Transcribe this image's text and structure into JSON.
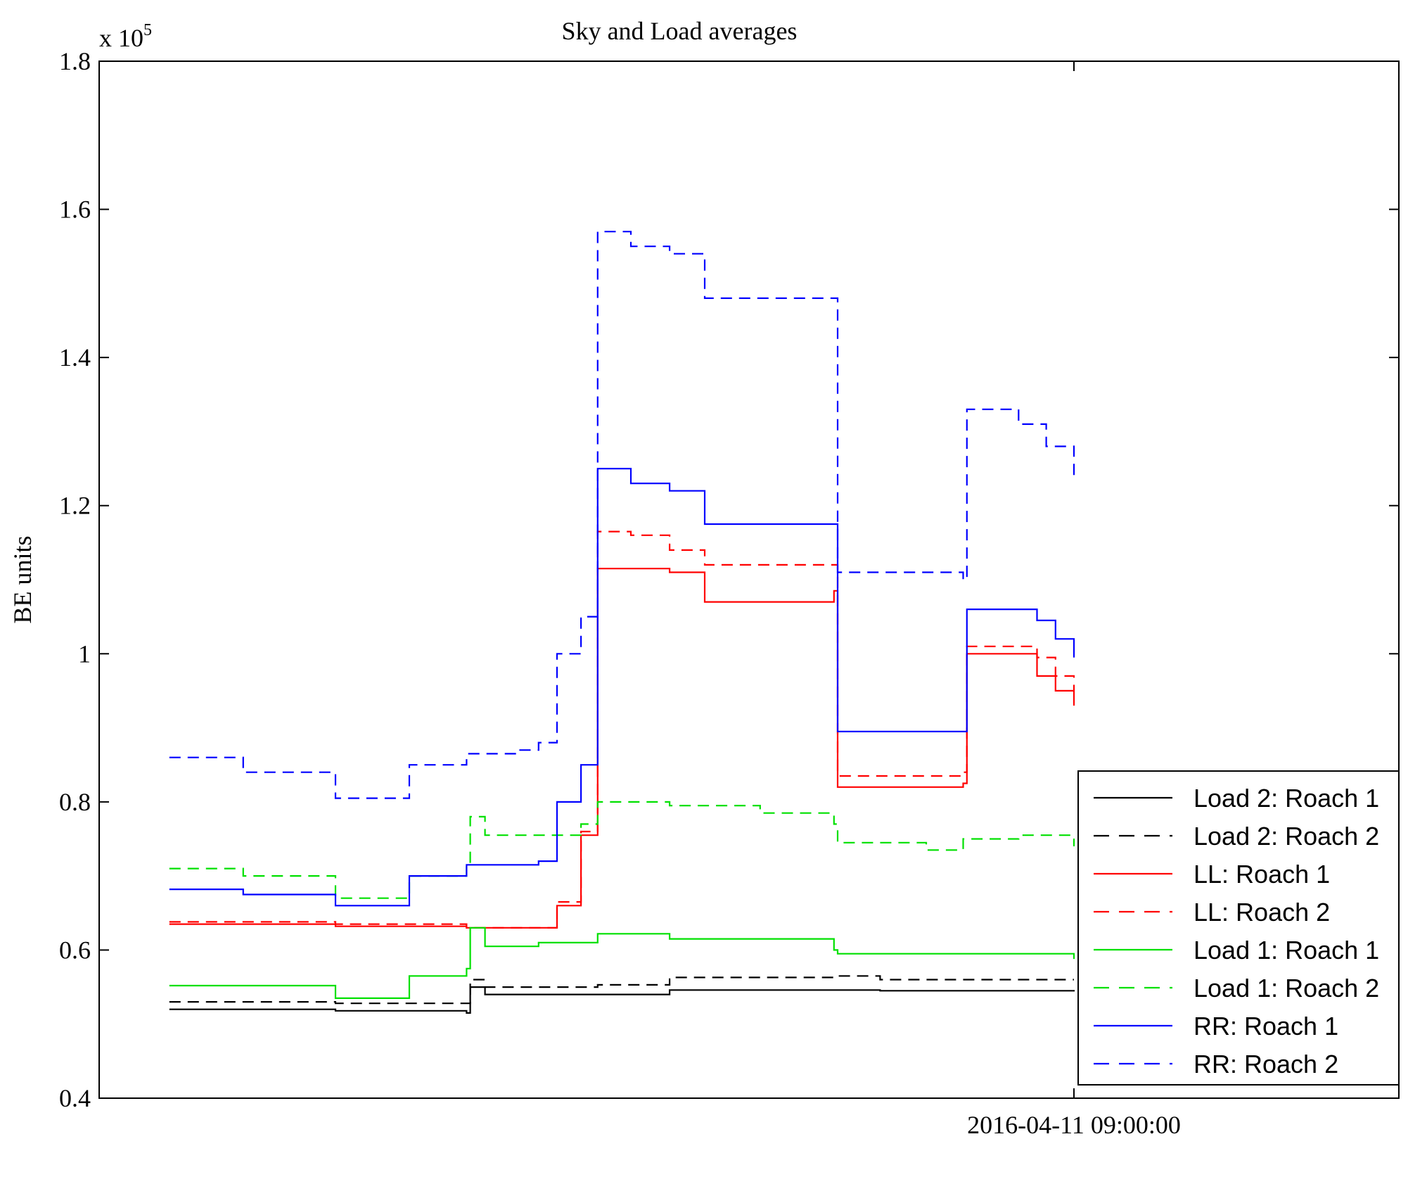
{
  "chart_data": {
    "type": "line",
    "title": "Sky and Load averages",
    "xlabel": "",
    "ylabel": "BE units",
    "y_multiplier": "x 10",
    "y_multiplier_exponent": "5",
    "ylim": [
      40000,
      180000
    ],
    "yticks": [
      {
        "value": 40000,
        "label": "0.4"
      },
      {
        "value": 60000,
        "label": "0.6"
      },
      {
        "value": 80000,
        "label": "0.8"
      },
      {
        "value": 100000,
        "label": "1"
      },
      {
        "value": 120000,
        "label": "1.2"
      },
      {
        "value": 140000,
        "label": "1.4"
      },
      {
        "value": 160000,
        "label": "1.6"
      },
      {
        "value": 180000,
        "label": "1.8"
      }
    ],
    "xlim": [
      "2016-04-11 00:12",
      "2016-04-11 11:56"
    ],
    "xticks": [
      {
        "value": "2016-04-11 09:00",
        "label": "2016-04-11 09:00:00"
      }
    ],
    "grid": false,
    "legend_position": "bottom-right",
    "series": [
      {
        "name": "Load 2: Roach 1",
        "color": "#000000",
        "dash": "solid",
        "x": [
          "2016-04-11 00:50",
          "2016-04-11 02:20",
          "2016-04-11 03:31",
          "2016-04-11 03:33",
          "2016-04-11 03:41",
          "2016-04-11 04:42",
          "2016-04-11 05:21",
          "2016-04-11 06:50",
          "2016-04-11 07:15",
          "2016-04-11 09:00"
        ],
        "y": [
          52000,
          51800,
          51500,
          55000,
          54000,
          54000,
          54600,
          54600,
          54500,
          54600
        ]
      },
      {
        "name": "Load 2: Roach 2",
        "color": "#000000",
        "dash": "dashed",
        "x": [
          "2016-04-11 00:50",
          "2016-04-11 02:20",
          "2016-04-11 03:31",
          "2016-04-11 03:33",
          "2016-04-11 03:41",
          "2016-04-11 04:42",
          "2016-04-11 05:21",
          "2016-04-11 06:50",
          "2016-04-11 07:15",
          "2016-04-11 09:00"
        ],
        "y": [
          53000,
          52800,
          52800,
          56000,
          55000,
          55300,
          56300,
          56500,
          56000,
          56000
        ]
      },
      {
        "name": "LL: Roach 1",
        "color": "#ff0000",
        "dash": "solid",
        "x": [
          "2016-04-11 00:50",
          "2016-04-11 02:20",
          "2016-04-11 03:31",
          "2016-04-11 04:10",
          "2016-04-11 04:20",
          "2016-04-11 04:33",
          "2016-04-11 04:42",
          "2016-04-11 05:00",
          "2016-04-11 05:21",
          "2016-04-11 05:40",
          "2016-04-11 06:50",
          "2016-04-11 06:52",
          "2016-04-11 08:00",
          "2016-04-11 08:02",
          "2016-04-11 08:40",
          "2016-04-11 08:50",
          "2016-04-11 09:00"
        ],
        "y": [
          63500,
          63200,
          63000,
          63000,
          66000,
          75500,
          111500,
          111500,
          111000,
          107000,
          108500,
          82000,
          82500,
          100000,
          97000,
          95000,
          93000
        ]
      },
      {
        "name": "LL: Roach 2",
        "color": "#ff0000",
        "dash": "dashed",
        "x": [
          "2016-04-11 00:50",
          "2016-04-11 02:20",
          "2016-04-11 03:31",
          "2016-04-11 04:10",
          "2016-04-11 04:20",
          "2016-04-11 04:33",
          "2016-04-11 04:42",
          "2016-04-11 05:00",
          "2016-04-11 05:21",
          "2016-04-11 05:40",
          "2016-04-11 06:50",
          "2016-04-11 06:52",
          "2016-04-11 08:00",
          "2016-04-11 08:02",
          "2016-04-11 08:40",
          "2016-04-11 08:50",
          "2016-04-11 09:00"
        ],
        "y": [
          63800,
          63500,
          63000,
          63000,
          66500,
          76000,
          116500,
          116000,
          114000,
          112000,
          112000,
          83500,
          84000,
          101000,
          99500,
          97000,
          95000
        ]
      },
      {
        "name": "Load 1: Roach 1",
        "color": "#00e000",
        "dash": "solid",
        "x": [
          "2016-04-11 00:50",
          "2016-04-11 02:20",
          "2016-04-11 03:00",
          "2016-04-11 03:31",
          "2016-04-11 03:33",
          "2016-04-11 03:41",
          "2016-04-11 04:10",
          "2016-04-11 04:42",
          "2016-04-11 05:21",
          "2016-04-11 06:50",
          "2016-04-11 06:52",
          "2016-04-11 08:00",
          "2016-04-11 09:00"
        ],
        "y": [
          55200,
          53500,
          56500,
          57500,
          63000,
          60500,
          61000,
          62200,
          61500,
          60000,
          59500,
          59500,
          58800
        ]
      },
      {
        "name": "Load 1: Roach 2",
        "color": "#00e000",
        "dash": "dashed",
        "x": [
          "2016-04-11 00:50",
          "2016-04-11 01:30",
          "2016-04-11 02:20",
          "2016-04-11 03:00",
          "2016-04-11 03:31",
          "2016-04-11 03:33",
          "2016-04-11 03:41",
          "2016-04-11 04:10",
          "2016-04-11 04:33",
          "2016-04-11 04:42",
          "2016-04-11 05:21",
          "2016-04-11 06:10",
          "2016-04-11 06:50",
          "2016-04-11 06:52",
          "2016-04-11 07:40",
          "2016-04-11 08:00",
          "2016-04-11 08:30",
          "2016-04-11 09:00"
        ],
        "y": [
          71000,
          70000,
          67000,
          70000,
          71500,
          78000,
          75500,
          75500,
          77000,
          80000,
          79500,
          78500,
          77000,
          74500,
          73500,
          75000,
          75500,
          74000
        ]
      },
      {
        "name": "RR: Roach 1",
        "color": "#0000ff",
        "dash": "solid",
        "x": [
          "2016-04-11 00:50",
          "2016-04-11 01:30",
          "2016-04-11 02:20",
          "2016-04-11 03:00",
          "2016-04-11 03:31",
          "2016-04-11 04:10",
          "2016-04-11 04:20",
          "2016-04-11 04:33",
          "2016-04-11 04:42",
          "2016-04-11 05:00",
          "2016-04-11 05:21",
          "2016-04-11 05:40",
          "2016-04-11 06:50",
          "2016-04-11 06:52",
          "2016-04-11 08:00",
          "2016-04-11 08:02",
          "2016-04-11 08:40",
          "2016-04-11 08:50",
          "2016-04-11 09:00"
        ],
        "y": [
          68200,
          67500,
          66000,
          70000,
          71500,
          72000,
          80000,
          85000,
          125000,
          123000,
          122000,
          117500,
          117500,
          89500,
          89500,
          106000,
          104500,
          102000,
          99500
        ]
      },
      {
        "name": "RR: Roach 2",
        "color": "#0000ff",
        "dash": "dashed",
        "x": [
          "2016-04-11 00:50",
          "2016-04-11 01:30",
          "2016-04-11 02:20",
          "2016-04-11 03:00",
          "2016-04-11 03:31",
          "2016-04-11 04:00",
          "2016-04-11 04:10",
          "2016-04-11 04:20",
          "2016-04-11 04:33",
          "2016-04-11 04:42",
          "2016-04-11 05:00",
          "2016-04-11 05:21",
          "2016-04-11 05:40",
          "2016-04-11 06:50",
          "2016-04-11 06:52",
          "2016-04-11 08:00",
          "2016-04-11 08:02",
          "2016-04-11 08:30",
          "2016-04-11 08:45",
          "2016-04-11 09:00"
        ],
        "y": [
          86000,
          84000,
          80500,
          85000,
          86500,
          87000,
          88000,
          100000,
          105000,
          157000,
          155000,
          154000,
          148000,
          148000,
          111000,
          110000,
          133000,
          131000,
          128000,
          124000
        ]
      }
    ]
  }
}
